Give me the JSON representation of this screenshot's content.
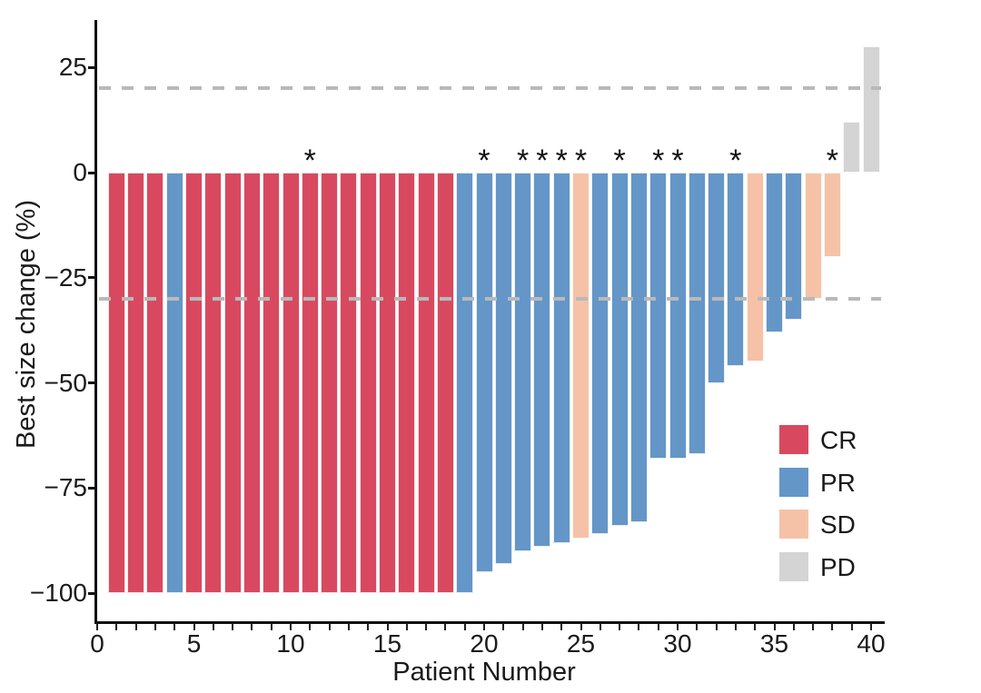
{
  "figure": {
    "x_axis_title": "Patient Number",
    "y_axis_title": "Best size change (%)"
  },
  "chart_data": {
    "type": "bar",
    "subtype": "waterfall",
    "title": "",
    "xlabel": "Patient Number",
    "ylabel": "Best size change (%)",
    "xlim": [
      0,
      40.7
    ],
    "ylim": [
      -107,
      36
    ],
    "grid": "off",
    "x_ticks": [
      0,
      5,
      10,
      15,
      20,
      25,
      30,
      35,
      40
    ],
    "x_minor_ticks": {
      "from": 0,
      "to": 40,
      "step": 1
    },
    "y_ticks": [
      {
        "v": 25,
        "label": "25"
      },
      {
        "v": 0,
        "label": "0"
      },
      {
        "v": -25,
        "label": "−25"
      },
      {
        "v": -50,
        "label": "−50"
      },
      {
        "v": -75,
        "label": "−75"
      },
      {
        "v": -100,
        "label": "−100"
      }
    ],
    "reference_lines": [
      {
        "y": 20,
        "style": "dashed",
        "color": "#b9b9b9"
      },
      {
        "y": -30,
        "style": "dashed",
        "color": "#b9b9b9"
      }
    ],
    "colors": {
      "CR": "#d8495f",
      "PR": "#6496c8",
      "SD": "#f6c2a7",
      "PD": "#d4d4d4"
    },
    "legend": [
      {
        "code": "CR",
        "color": "#d8495f"
      },
      {
        "code": "PR",
        "color": "#6496c8"
      },
      {
        "code": "SD",
        "color": "#f6c2a7"
      },
      {
        "code": "PD",
        "color": "#d4d4d4"
      }
    ],
    "legend_position": "inside-right",
    "star_annotation": "*",
    "patients": [
      {
        "patient": 1,
        "value": -100,
        "response": "CR",
        "starred": false
      },
      {
        "patient": 2,
        "value": -100,
        "response": "CR",
        "starred": false
      },
      {
        "patient": 3,
        "value": -100,
        "response": "CR",
        "starred": false
      },
      {
        "patient": 4,
        "value": -100,
        "response": "PR",
        "starred": false
      },
      {
        "patient": 5,
        "value": -100,
        "response": "CR",
        "starred": false
      },
      {
        "patient": 6,
        "value": -100,
        "response": "CR",
        "starred": false
      },
      {
        "patient": 7,
        "value": -100,
        "response": "CR",
        "starred": false
      },
      {
        "patient": 8,
        "value": -100,
        "response": "CR",
        "starred": false
      },
      {
        "patient": 9,
        "value": -100,
        "response": "CR",
        "starred": false
      },
      {
        "patient": 10,
        "value": -100,
        "response": "CR",
        "starred": false
      },
      {
        "patient": 11,
        "value": -100,
        "response": "CR",
        "starred": true
      },
      {
        "patient": 12,
        "value": -100,
        "response": "CR",
        "starred": false
      },
      {
        "patient": 13,
        "value": -100,
        "response": "CR",
        "starred": false
      },
      {
        "patient": 14,
        "value": -100,
        "response": "CR",
        "starred": false
      },
      {
        "patient": 15,
        "value": -100,
        "response": "CR",
        "starred": false
      },
      {
        "patient": 16,
        "value": -100,
        "response": "CR",
        "starred": false
      },
      {
        "patient": 17,
        "value": -100,
        "response": "CR",
        "starred": false
      },
      {
        "patient": 18,
        "value": -100,
        "response": "CR",
        "starred": false
      },
      {
        "patient": 19,
        "value": -100,
        "response": "PR",
        "starred": false
      },
      {
        "patient": 20,
        "value": -95,
        "response": "PR",
        "starred": true
      },
      {
        "patient": 21,
        "value": -93,
        "response": "PR",
        "starred": false
      },
      {
        "patient": 22,
        "value": -90,
        "response": "PR",
        "starred": true
      },
      {
        "patient": 23,
        "value": -89,
        "response": "PR",
        "starred": true
      },
      {
        "patient": 24,
        "value": -88,
        "response": "PR",
        "starred": true
      },
      {
        "patient": 25,
        "value": -87,
        "response": "SD",
        "starred": true
      },
      {
        "patient": 26,
        "value": -86,
        "response": "PR",
        "starred": false
      },
      {
        "patient": 27,
        "value": -84,
        "response": "PR",
        "starred": true
      },
      {
        "patient": 28,
        "value": -83,
        "response": "PR",
        "starred": false
      },
      {
        "patient": 29,
        "value": -68,
        "response": "PR",
        "starred": true
      },
      {
        "patient": 30,
        "value": -68,
        "response": "PR",
        "starred": true
      },
      {
        "patient": 31,
        "value": -67,
        "response": "PR",
        "starred": false
      },
      {
        "patient": 32,
        "value": -50,
        "response": "PR",
        "starred": false
      },
      {
        "patient": 33,
        "value": -46,
        "response": "PR",
        "starred": true
      },
      {
        "patient": 34,
        "value": -45,
        "response": "SD",
        "starred": false
      },
      {
        "patient": 35,
        "value": -38,
        "response": "PR",
        "starred": false
      },
      {
        "patient": 36,
        "value": -35,
        "response": "PR",
        "starred": false
      },
      {
        "patient": 37,
        "value": -30,
        "response": "SD",
        "starred": false
      },
      {
        "patient": 38,
        "value": -20,
        "response": "SD",
        "starred": true
      },
      {
        "patient": 39,
        "value": 12,
        "response": "PD",
        "starred": false
      },
      {
        "patient": 40,
        "value": 30,
        "response": "PD",
        "starred": false
      }
    ]
  }
}
